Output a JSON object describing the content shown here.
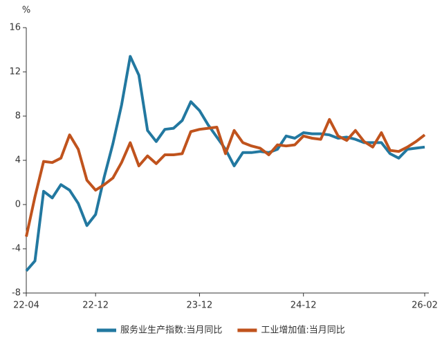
{
  "chart_data": {
    "type": "line",
    "y_unit": "%",
    "categories": [
      "22-04",
      null,
      null,
      null,
      null,
      null,
      null,
      null,
      "22-12",
      null,
      null,
      null,
      null,
      null,
      null,
      null,
      null,
      null,
      null,
      null,
      "23-12",
      null,
      null,
      null,
      null,
      null,
      null,
      null,
      null,
      null,
      null,
      null,
      "24-12",
      null,
      null,
      null,
      null,
      null,
      null,
      null,
      null,
      null,
      null,
      null,
      null,
      null,
      "26-02"
    ],
    "series": [
      {
        "name": "服务业生产指数:当月同比",
        "color": "#2278a0",
        "values": [
          -6.0,
          -5.1,
          1.2,
          0.6,
          1.8,
          1.3,
          0.1,
          -1.9,
          -0.9,
          2.5,
          5.5,
          9.0,
          13.4,
          11.7,
          6.7,
          5.7,
          6.8,
          6.9,
          7.6,
          9.3,
          8.5,
          7.2,
          6.1,
          5.0,
          3.5,
          4.7,
          4.7,
          4.8,
          4.7,
          5.0,
          6.2,
          6.0,
          6.5,
          6.4,
          6.4,
          6.3,
          6.0,
          6.1,
          5.9,
          5.6,
          5.6,
          5.6,
          4.6,
          4.2,
          5.0,
          5.1,
          5.2
        ]
      },
      {
        "name": "工业增加值:当月同比",
        "color": "#c0531d",
        "values": [
          -2.9,
          0.7,
          3.9,
          3.8,
          4.2,
          6.3,
          5.0,
          2.2,
          1.3,
          1.8,
          2.4,
          3.8,
          5.6,
          3.5,
          4.4,
          3.7,
          4.5,
          4.5,
          4.6,
          6.6,
          6.8,
          6.9,
          7.0,
          4.6,
          6.7,
          5.6,
          5.3,
          5.1,
          4.5,
          5.4,
          5.3,
          5.4,
          6.2,
          6.0,
          5.9,
          7.7,
          6.2,
          5.8,
          6.7,
          5.7,
          5.2,
          6.5,
          4.9,
          4.8,
          5.2,
          5.7,
          6.3
        ]
      }
    ],
    "ylim": [
      -8,
      16
    ],
    "yticks": [
      -8,
      -4,
      0,
      4,
      8,
      12,
      16
    ],
    "grid": false
  }
}
